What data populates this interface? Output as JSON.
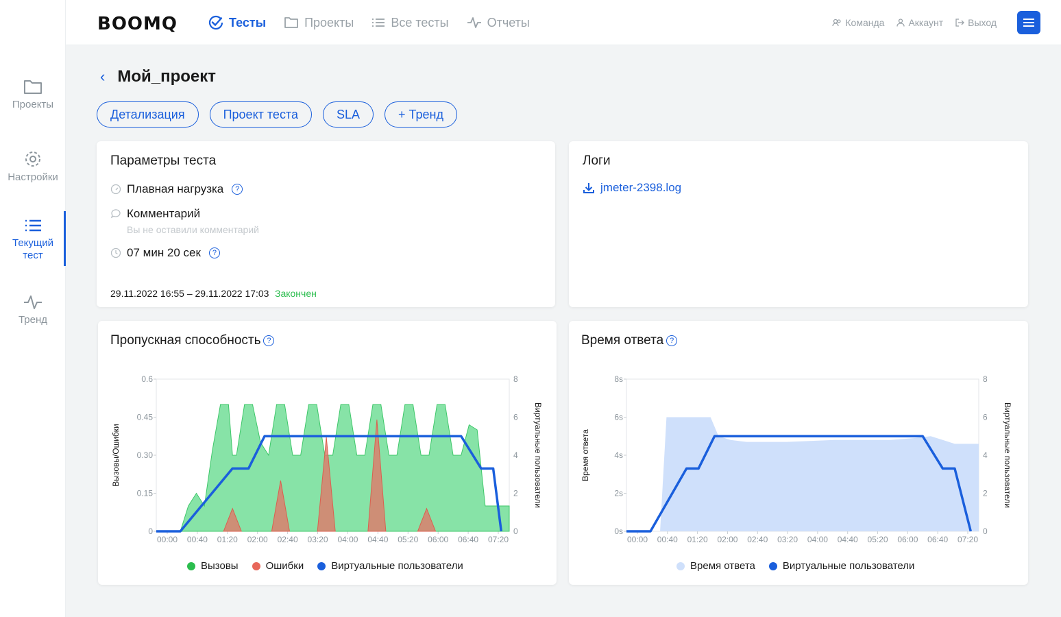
{
  "sidebar": {
    "items": [
      {
        "label": "Проекты",
        "icon": "folder-icon"
      },
      {
        "label": "Настройки",
        "icon": "gear-icon"
      },
      {
        "label": "Текущий тест",
        "icon": "list-icon",
        "active": true
      },
      {
        "label": "Тренд",
        "icon": "pulse-icon"
      }
    ]
  },
  "header": {
    "logo": "BOOMQ",
    "nav": [
      {
        "label": "Тесты",
        "icon": "check-circle-icon",
        "active": true
      },
      {
        "label": "Проекты",
        "icon": "folder-icon"
      },
      {
        "label": "Все тесты",
        "icon": "list-icon"
      },
      {
        "label": "Отчеты",
        "icon": "pulse-icon"
      }
    ],
    "right": [
      {
        "label": "Команда",
        "icon": "team-icon"
      },
      {
        "label": "Аккаунт",
        "icon": "user-icon"
      },
      {
        "label": "Выход",
        "icon": "logout-icon"
      }
    ]
  },
  "page": {
    "back_label": "‹",
    "title": "Мой_проект",
    "tabs": [
      "Детализация",
      "Проект теста",
      "SLA",
      "+ Тренд"
    ]
  },
  "params": {
    "title": "Параметры теста",
    "load_type": "Плавная нагрузка",
    "comment_label": "Комментарий",
    "comment_placeholder": "Вы не оставили комментарий",
    "duration": "07 мин 20 сек",
    "dates": "29.11.2022 16:55 – 29.11.2022 17:03",
    "status": "Закончен",
    "status_color": "#2bbd4e"
  },
  "logs": {
    "title": "Логи",
    "file": "jmeter-2398.log"
  },
  "throughput": {
    "title": "Пропускная способность",
    "legend": [
      "Вызовы",
      "Ошибки",
      "Виртуальные пользователи"
    ],
    "colors": {
      "calls": "#5fd98a",
      "errors": "#e0786a",
      "vusers": "#1a5fdc"
    }
  },
  "response": {
    "title": "Время ответа",
    "legend": [
      "Время ответа",
      "Виртуальные пользователи"
    ],
    "colors": {
      "response": "#cfe0fb",
      "vusers": "#1a5fdc"
    }
  },
  "chart_data": [
    {
      "type": "area",
      "title": "Пропускная способность",
      "ylabel": "Вызовы/Ошибки",
      "y2label": "Виртуальные пользователи",
      "ylim": [
        0,
        0.6
      ],
      "y2lim": [
        0,
        8
      ],
      "yticks": [
        "0",
        "0.15",
        "0.30",
        "0.45",
        "0.6"
      ],
      "y2ticks": [
        "0",
        "2",
        "4",
        "6",
        "8"
      ],
      "xticks": [
        "00:00",
        "00:40",
        "01:20",
        "02:00",
        "02:40",
        "03:20",
        "04:00",
        "04:40",
        "05:20",
        "06:00",
        "06:40",
        "07:20"
      ],
      "x_seconds": [
        0,
        20,
        30,
        40,
        50,
        60,
        70,
        80,
        90,
        95,
        100,
        110,
        120,
        130,
        140,
        150,
        160,
        170,
        180,
        190,
        200,
        210,
        220,
        230,
        240,
        250,
        260,
        270,
        280,
        290,
        300,
        310,
        320,
        330,
        340,
        350,
        360,
        370,
        380,
        390,
        400,
        410,
        420,
        430,
        440
      ],
      "series": [
        {
          "name": "Вызовы",
          "values": [
            0,
            0,
            0,
            0.1,
            0.15,
            0.1,
            0.32,
            0.5,
            0.5,
            0.3,
            0.3,
            0.5,
            0.5,
            0.35,
            0.3,
            0.5,
            0.5,
            0.3,
            0.3,
            0.5,
            0.5,
            0.3,
            0.3,
            0.5,
            0.5,
            0.3,
            0.3,
            0.5,
            0.5,
            0.3,
            0.3,
            0.5,
            0.5,
            0.3,
            0.3,
            0.5,
            0.5,
            0.3,
            0.3,
            0.42,
            0.4,
            0.1,
            0.1,
            0.1,
            0.1
          ]
        },
        {
          "name": "Ошибки",
          "peaks": [
            {
              "x": 95,
              "y": 0.09
            },
            {
              "x": 155,
              "y": 0.2
            },
            {
              "x": 212,
              "y": 0.37
            },
            {
              "x": 275,
              "y": 0.44
            },
            {
              "x": 337,
              "y": 0.09
            }
          ]
        },
        {
          "name": "Виртуальные пользователи",
          "x": [
            0,
            30,
            95,
            115,
            135,
            380,
            405,
            420,
            430
          ],
          "values": [
            0,
            0,
            3.3,
            3.3,
            5,
            5,
            3.3,
            3.3,
            0
          ]
        }
      ]
    },
    {
      "type": "area",
      "title": "Время ответа",
      "ylabel": "Время ответа",
      "y2label": "Виртуальные пользователи",
      "ylim": [
        0,
        8
      ],
      "y2lim": [
        0,
        8
      ],
      "yticks": [
        "0s",
        "2s",
        "4s",
        "6s",
        "8s"
      ],
      "y2ticks": [
        "0",
        "2",
        "4",
        "6",
        "8"
      ],
      "xticks": [
        "00:00",
        "00:40",
        "01:20",
        "02:00",
        "02:40",
        "03:20",
        "04:00",
        "04:40",
        "05:20",
        "06:00",
        "06:40",
        "07:20"
      ],
      "series": [
        {
          "name": "Время ответа",
          "x": [
            0,
            35,
            42,
            50,
            60,
            80,
            105,
            115,
            130,
            150,
            200,
            260,
            300,
            330,
            360,
            380,
            395,
            410,
            440
          ],
          "values": [
            0,
            0,
            0,
            6,
            6,
            6,
            6,
            5,
            4.8,
            4.7,
            4.7,
            4.8,
            4.8,
            4.8,
            4.9,
            5,
            4.8,
            4.6,
            4.6
          ]
        },
        {
          "name": "Виртуальные пользователи",
          "x": [
            0,
            30,
            75,
            90,
            110,
            370,
            395,
            410,
            430
          ],
          "values": [
            0,
            0,
            3.3,
            3.3,
            5,
            5,
            3.3,
            3.3,
            0
          ]
        }
      ]
    }
  ]
}
